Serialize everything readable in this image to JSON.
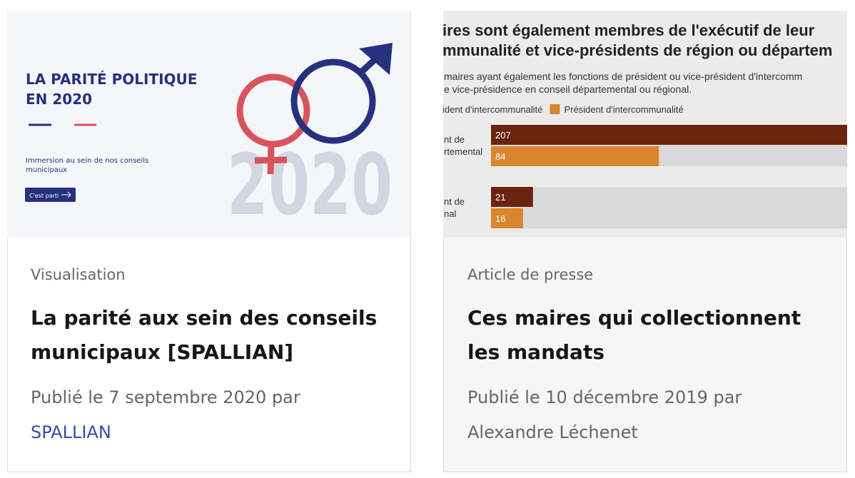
{
  "cards": [
    {
      "image": {
        "title_lines": [
          "LA PARITÉ POLITIQUE",
          "EN 2020"
        ],
        "subtitle_lines": [
          "Immersion au sein de nos conseils",
          "municipaux"
        ],
        "button": "C'est parti",
        "year": "2020"
      },
      "category": "Visualisation",
      "title_lines": [
        "La parité aux sein des conseils",
        "municipaux [SPALLIAN]"
      ],
      "published": "Publié le 7 septembre 2020 par",
      "author": "SPALLIAN"
    },
    {
      "image": {
        "chart_data": {
          "type": "bar",
          "title_lines": [
            "ires sont également membres de l'exécutif de leur",
            "mmunalité et vice-présidents de région ou départem"
          ],
          "subtitle_lines": [
            "maires ayant également les fonctions de président ou vice-président d'intercomm",
            "e vice-présidence en conseil départemental ou régional."
          ],
          "categories": [
            [
              "nt de",
              "rtemental"
            ],
            [
              "nt de",
              "nal"
            ]
          ],
          "series": [
            {
              "name": "ident d'intercommunalité",
              "color": "#6b2410",
              "values": [
                207,
                21
              ]
            },
            {
              "name": "Président d'intercommunalité",
              "color": "#d9862e",
              "values": [
                84,
                16
              ]
            }
          ]
        }
      },
      "category": "Article de presse",
      "title_lines": [
        "Ces maires qui collectionnent",
        "les mandats"
      ],
      "published": "Publié le 10 décembre 2019 par",
      "author": "Alexandre Léchenet"
    }
  ]
}
